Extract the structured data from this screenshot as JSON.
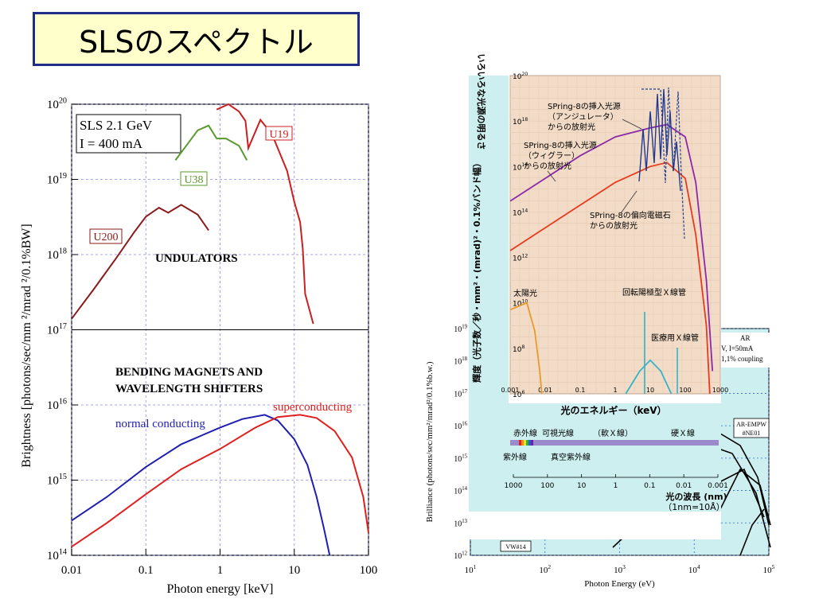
{
  "slide": {
    "title": "SLSのスペクトル"
  },
  "chart_data": [
    {
      "type": "line",
      "xlabel": "Photon energy [keV]",
      "ylabel": "Brightness [photons/sec/mm  ²/mrad ²/0.1%BW]",
      "x_scale": "log",
      "y_scale": "log",
      "xlim": [
        0.01,
        100
      ],
      "ylim": [
        100000000000000.0,
        1e+20
      ],
      "xticks": [
        "0.01",
        "0.1",
        "1",
        "10",
        "100"
      ],
      "yticks": [
        {
          "base": "10",
          "exp": "14"
        },
        {
          "base": "10",
          "exp": "15"
        },
        {
          "base": "10",
          "exp": "16"
        },
        {
          "base": "10",
          "exp": "17"
        },
        {
          "base": "10",
          "exp": "18"
        },
        {
          "base": "10",
          "exp": "19"
        },
        {
          "base": "10",
          "exp": "20"
        }
      ],
      "panel_break_at": 1e+17,
      "info_box": [
        "SLS 2.1 GeV",
        "I = 400 mA"
      ],
      "annotations": [
        "UNDULATORS",
        "BENDING MAGNETS AND",
        "WAVELENGTH SHIFTERS"
      ],
      "series": [
        {
          "name": "U200",
          "color": "#8b1a1a",
          "panel": "upper",
          "points": [
            [
              0.01,
              1.4e+17
            ],
            [
              0.02,
              3.5e+17
            ],
            [
              0.04,
              9e+17
            ],
            [
              0.07,
              2e+18
            ],
            [
              0.1,
              3.2e+18
            ],
            [
              0.15,
              4.2e+18
            ],
            [
              0.2,
              3.6e+18
            ],
            [
              0.3,
              4.6e+18
            ],
            [
              0.5,
              3.4e+18
            ],
            [
              0.7,
              2.1e+18
            ]
          ]
        },
        {
          "name": "U38",
          "color": "#5a9a2a",
          "panel": "upper",
          "points": [
            [
              0.25,
              1.8e+19
            ],
            [
              0.35,
              2.8e+19
            ],
            [
              0.5,
              4.5e+19
            ],
            [
              0.7,
              5.2e+19
            ],
            [
              0.9,
              3.5e+19
            ],
            [
              1.2,
              3.5e+19
            ],
            [
              1.8,
              2.8e+19
            ],
            [
              2.3,
              1.8e+19
            ]
          ]
        },
        {
          "name": "U19",
          "color": "#cc1f1f",
          "panel": "upper",
          "points": [
            [
              0.9,
              8.5e+19
            ],
            [
              1.3,
              1e+20
            ],
            [
              1.8,
              8e+19
            ],
            [
              2.2,
              6e+19
            ],
            [
              2.4,
              2.6e+19
            ],
            [
              3.5,
              6.2e+19
            ],
            [
              5,
              4e+19
            ],
            [
              8,
              1.3e+19
            ],
            [
              10,
              5e+18
            ],
            [
              12,
              2.7e+18
            ],
            [
              13,
              1.2e+18
            ],
            [
              14,
              3e+17
            ],
            [
              18,
              1.2e+17
            ]
          ]
        },
        {
          "name": "normal conducting",
          "color": "#1f1fb0",
          "panel": "lower",
          "points": [
            [
              0.01,
              290000000000000.0
            ],
            [
              0.03,
              600000000000000.0
            ],
            [
              0.1,
              1500000000000000.0
            ],
            [
              0.3,
              3000000000000000.0
            ],
            [
              1,
              5000000000000000.0
            ],
            [
              2,
              6500000000000000.0
            ],
            [
              4,
              7400000000000000.0
            ],
            [
              6,
              6200000000000000.0
            ],
            [
              10,
              3500000000000000.0
            ],
            [
              15,
              1600000000000000.0
            ],
            [
              20,
              600000000000000.0
            ],
            [
              25,
              230000000000000.0
            ],
            [
              30,
              100000000000000.0
            ]
          ]
        },
        {
          "name": "superconducting",
          "color": "#e21f1f",
          "panel": "lower",
          "points": [
            [
              0.01,
              130000000000000.0
            ],
            [
              0.03,
              270000000000000.0
            ],
            [
              0.1,
              650000000000000.0
            ],
            [
              0.3,
              1400000000000000.0
            ],
            [
              1,
              2600000000000000.0
            ],
            [
              3,
              5000000000000000.0
            ],
            [
              6,
              6900000000000000.0
            ],
            [
              12,
              7400000000000000.0
            ],
            [
              20,
              6700000000000000.0
            ],
            [
              35,
              4500000000000000.0
            ],
            [
              60,
              2000000000000000.0
            ],
            [
              85,
              600000000000000.0
            ],
            [
              100,
              200000000000000.0
            ]
          ]
        }
      ]
    },
    {
      "type": "line",
      "xlabel": "Photon Energy (eV)",
      "ylabel": "Brilliance (photons/sec/mm²/mrad²/0.1%b.w.)",
      "x_scale": "log",
      "y_scale": "log",
      "xlim": [
        10,
        100000
      ],
      "ylim": [
        1000000000000.0,
        1e+19
      ],
      "xticks": [
        {
          "base": "10",
          "exp": "1"
        },
        {
          "base": "10",
          "exp": "2"
        },
        {
          "base": "10",
          "exp": "3"
        },
        {
          "base": "10",
          "exp": "4"
        },
        {
          "base": "10",
          "exp": "5"
        }
      ],
      "yticks": [
        {
          "base": "10",
          "exp": "12"
        },
        {
          "base": "10",
          "exp": "13"
        },
        {
          "base": "10",
          "exp": "14"
        },
        {
          "base": "10",
          "exp": "15"
        },
        {
          "base": "10",
          "exp": "16"
        },
        {
          "base": "10",
          "exp": "17"
        },
        {
          "base": "10",
          "exp": "18"
        },
        {
          "base": "10",
          "exp": "19"
        }
      ],
      "labels": [
        "AR",
        "V, I=50mA",
        "1,1% coupling",
        "AR-EMPW",
        "#NE01",
        "VW#14",
        "AR-Bend"
      ]
    },
    {
      "type": "line",
      "xlabel": "光のエネルギー（keV）",
      "ylabel": "輝度（光子数／秒・mm²・(mrad)²・0.1%バンド幅）",
      "x_scale": "log",
      "y_scale": "log",
      "xlim": [
        0.001,
        1000
      ],
      "ylim": [
        1000000.0,
        1e+20
      ],
      "xticks": [
        "0.001",
        "0.01",
        "0.1",
        "1",
        "10",
        "100",
        "1000"
      ],
      "yticks": [
        {
          "base": "10",
          "exp": "6"
        },
        {
          "base": "10",
          "exp": "8"
        },
        {
          "base": "10",
          "exp": "10"
        },
        {
          "base": "10",
          "exp": "12"
        },
        {
          "base": "10",
          "exp": "14"
        },
        {
          "base": "10",
          "exp": "16"
        },
        {
          "base": "10",
          "exp": "18"
        },
        {
          "base": "10",
          "exp": "20"
        }
      ],
      "side_title": "いろいろな光源の明るさ",
      "annotations": [
        "SPring-8の挿入光源",
        "（アンジュレータ）",
        "からの放射光",
        "SPring-8の挿入光源",
        "（ウィグラー）",
        "からの放射光",
        "SPring-8の偏向電磁石",
        "からの放射光",
        "太陽光",
        "回転陽極型Ｘ線管",
        "医療用Ｘ線管"
      ],
      "series": [
        {
          "name": "SPring-8の挿入光源（ウィグラー）からの放射光",
          "color": "#8a2aa8",
          "points": [
            [
              0.001,
              300000000000000.0
            ],
            [
              0.01,
              3000000000000000.0
            ],
            [
              0.1,
              3e+16
            ],
            [
              1,
              2e+17
            ],
            [
              10,
              5e+17
            ],
            [
              30,
              7e+17
            ],
            [
              100,
              2e+17
            ],
            [
              200,
              2000000000000000.0
            ],
            [
              400,
              100000000000.0
            ],
            [
              600,
              10000000.0
            ]
          ]
        },
        {
          "name": "SPring-8の偏向電磁石からの放射光",
          "color": "#e63b1f",
          "points": [
            [
              0.001,
              2000000000000.0
            ],
            [
              0.01,
              20000000000000.0
            ],
            [
              0.1,
              200000000000000.0
            ],
            [
              1,
              2000000000000000.0
            ],
            [
              10,
              1e+16
            ],
            [
              30,
              1.5e+16
            ],
            [
              100,
              3000000000000000.0
            ],
            [
              200,
              10000000000000.0
            ],
            [
              400,
              1000000000.0
            ],
            [
              500,
              1000000.0
            ]
          ]
        },
        {
          "name": "太陽光",
          "color": "#e89a2a",
          "points": [
            [
              0.001,
              5000000000.0
            ],
            [
              0.003,
              10000000000.0
            ],
            [
              0.005,
              600000000.0
            ],
            [
              0.007,
              10000000.0
            ],
            [
              0.008,
              1000000.0
            ]
          ]
        },
        {
          "name": "回転陽極型Ｘ線管",
          "color": "#36b3c9",
          "points": [
            [
              2,
              1000000.0
            ],
            [
              5,
              10000000.0
            ],
            [
              10,
              30000000.0
            ],
            [
              20,
              10000000.0
            ],
            [
              40,
              1000000.0
            ]
          ]
        }
      ],
      "spectrum_bar": {
        "bands": [
          "赤外線",
          "可視光線",
          "（軟Ｘ線）",
          "硬Ｘ線",
          "紫外線",
          "真空紫外線"
        ],
        "wavelength_ticks": [
          "1000",
          "100",
          "10",
          "1",
          "0.1",
          "0.01",
          "0.001"
        ],
        "wavelength_label": "光の波長 (nm)",
        "wavelength_note": "（1nm=10Å）"
      }
    }
  ]
}
